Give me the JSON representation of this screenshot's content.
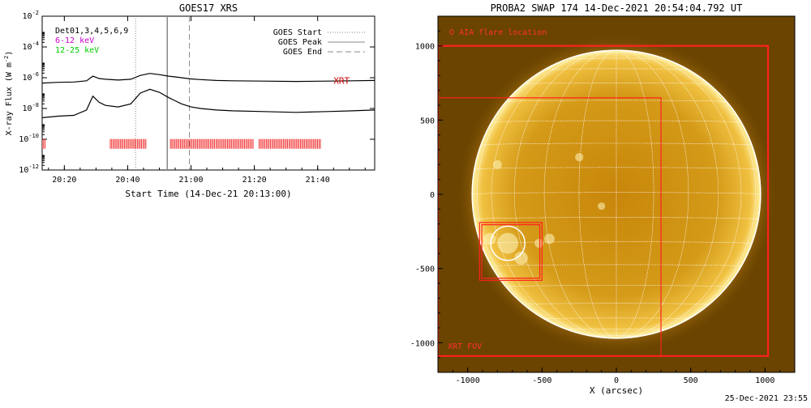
{
  "footer": {
    "timestamp": "25-Dec-2021 23:55"
  },
  "colors": {
    "low_channel": "#000000",
    "high_channel": "#000000",
    "xrt_ticks": "#ff0000",
    "sun_disk": "#e0a000",
    "grid": "#ffffff",
    "fov_box": "#ff2020"
  },
  "chart_data": [
    {
      "type": "line",
      "title": "GOES17 XRS",
      "xlabel": "Start Time (14-Dec-21 20:13:00)",
      "ylabel": "X-ray Flux (W m^-2)",
      "ylabel_main": "X-ray Flux (W m",
      "ylabel_sup": "-2",
      "ylabel_end": ")",
      "y_scale": "log",
      "ylim_exp": [
        -12,
        -2
      ],
      "y_ticks": [
        {
          "exp": -12,
          "label_base": "10",
          "label_exp": "-12"
        },
        {
          "exp": -10,
          "label_base": "10",
          "label_exp": "-10"
        },
        {
          "exp": -8,
          "label_base": "10",
          "label_exp": "-8"
        },
        {
          "exp": -6,
          "label_base": "10",
          "label_exp": "-6"
        },
        {
          "exp": -4,
          "label_base": "10",
          "label_exp": "-4"
        },
        {
          "exp": -2,
          "label_base": "10",
          "label_exp": "-2"
        }
      ],
      "x_unit": "minutes after 20:13",
      "xlim": [
        0,
        105
      ],
      "x_ticks": [
        {
          "t": 7,
          "label": "20:20"
        },
        {
          "t": 27,
          "label": "20:40"
        },
        {
          "t": 47,
          "label": "21:00"
        },
        {
          "t": 67,
          "label": "21:20"
        },
        {
          "t": 87,
          "label": "21:40"
        }
      ],
      "legend_left": [
        {
          "text": "Det01,3,4,5,6,9",
          "color": "#000000"
        },
        {
          "text": "6-12 keV",
          "color": "#cc00cc"
        },
        {
          "text": "12-25 keV",
          "color": "#00cc00"
        }
      ],
      "legend_right": [
        {
          "text": "GOES Start",
          "style": "dotted"
        },
        {
          "text": "GOES Peak",
          "style": "solid"
        },
        {
          "text": "GOES End",
          "style": "dashed"
        }
      ],
      "event_lines": {
        "start": 29.5,
        "peak": 39.5,
        "end": 46.5
      },
      "series": [
        {
          "name": "low",
          "x": [
            0,
            5,
            10,
            14,
            16,
            18,
            20,
            24,
            28,
            31,
            34,
            37,
            40,
            42,
            44,
            47,
            50,
            55,
            60,
            70,
            80,
            90,
            98,
            105
          ],
          "log_y": [
            -6.35,
            -6.3,
            -6.28,
            -6.2,
            -5.9,
            -6.05,
            -6.1,
            -6.15,
            -6.1,
            -5.85,
            -5.72,
            -5.8,
            -5.9,
            -5.95,
            -6.0,
            -6.08,
            -6.12,
            -6.18,
            -6.2,
            -6.22,
            -6.24,
            -6.22,
            -6.2,
            -6.18
          ]
        },
        {
          "name": "high",
          "x": [
            0,
            5,
            10,
            14,
            16,
            18,
            20,
            24,
            28,
            31,
            34,
            37,
            40,
            42,
            44,
            47,
            50,
            55,
            60,
            70,
            80,
            90,
            98,
            105
          ],
          "log_y": [
            -8.6,
            -8.5,
            -8.45,
            -8.1,
            -7.2,
            -7.6,
            -7.8,
            -7.9,
            -7.7,
            -7.0,
            -6.75,
            -6.95,
            -7.3,
            -7.5,
            -7.7,
            -7.9,
            -8.0,
            -8.1,
            -8.15,
            -8.2,
            -8.25,
            -8.2,
            -8.15,
            -8.1
          ]
        }
      ],
      "xrt_label": "XRT",
      "xrt_label_log_y": -6.4,
      "xrt_label_x": 92,
      "xrt_ticks_log_y": -10.3,
      "xrt_intervals": [
        [
          0,
          1.2
        ],
        [
          21.5,
          33
        ],
        [
          40.5,
          67
        ],
        [
          68.5,
          88
        ]
      ]
    },
    {
      "type": "image",
      "title": "PROBA2 SWAP 174 14-Dec-2021 20:54:04.792 UT",
      "xlabel": "X (arcsec)",
      "xlim": [
        -1200,
        1200
      ],
      "ylim": [
        -1200,
        1200
      ],
      "x_ticks": [
        -1000,
        -500,
        0,
        500,
        1000
      ],
      "y_ticks": [
        -1000,
        -500,
        0,
        500,
        1000
      ],
      "solar_radius": 970,
      "aia_label": "O AIA flare location",
      "fov_label": "XRT FOV",
      "flare_center": [
        -730,
        -330
      ],
      "flare_radius": 115,
      "fov_outer": [
        -1200,
        -1090,
        1020,
        1000
      ],
      "fov_inner": [
        -1200,
        -1090,
        300,
        650
      ],
      "flare_box": [
        -920,
        -580,
        -500,
        -190
      ]
    }
  ]
}
